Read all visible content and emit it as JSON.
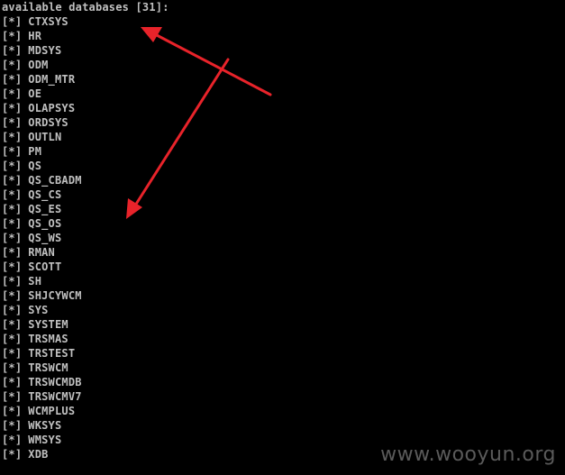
{
  "terminal": {
    "header": "available databases [31]:",
    "item_prefix": "[*]",
    "databases": [
      "CTXSYS",
      "HR",
      "MDSYS",
      "ODM",
      "ODM_MTR",
      "OE",
      "OLAPSYS",
      "ORDSYS",
      "OUTLN",
      "PM",
      "QS",
      "QS_CBADM",
      "QS_CS",
      "QS_ES",
      "QS_OS",
      "QS_WS",
      "RMAN",
      "SCOTT",
      "SH",
      "SHJCYWCM",
      "SYS",
      "SYSTEM",
      "TRSMAS",
      "TRSTEST",
      "TRSWCM",
      "TRSWCMDB",
      "TRSWCMV7",
      "WCMPLUS",
      "WKSYS",
      "WMSYS",
      "XDB"
    ]
  },
  "watermark": {
    "text": "www.wooyun.org"
  },
  "colors": {
    "background": "#000000",
    "text": "#c0c0c0",
    "annotation_arrow": "#e8232a",
    "watermark": "#5a5a5a"
  },
  "annotations": {
    "arrow_count": 2,
    "arrow_icon": "red-arrow-icon"
  }
}
